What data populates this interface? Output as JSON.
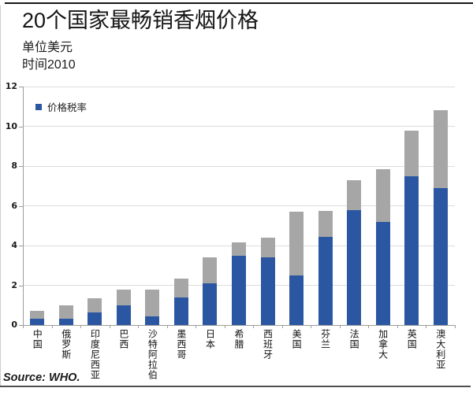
{
  "header": {
    "title": "20个国家最畅销香烟价格",
    "unit": "单位美元",
    "time": "时间2010"
  },
  "footer": {
    "source": "Source: WHO."
  },
  "colors": {
    "bar_blue": "#2b57a2",
    "bar_gray": "#a6a6a6",
    "gridline": "#dcdcdc",
    "axis": "#9c9c9c"
  },
  "chart_data": {
    "type": "bar",
    "stacked": true,
    "title": "20个国家最畅销香烟价格",
    "unit_note": "单位美元",
    "time_note": "时间2010",
    "categories": [
      "中国",
      "俄罗斯",
      "印度尼西亚",
      "巴西",
      "沙特阿拉伯",
      "墨西哥",
      "日本",
      "希腊",
      "西班牙",
      "美国",
      "芬兰",
      "法国",
      "加拿大",
      "英国",
      "澳大利亚"
    ],
    "series": [
      {
        "name": "价格税率",
        "color": "#2b57a2",
        "values": [
          0.3,
          0.33,
          0.65,
          1.0,
          0.45,
          1.4,
          2.1,
          3.5,
          3.4,
          2.5,
          4.45,
          5.8,
          5.2,
          7.5,
          6.9
        ]
      },
      {
        "name": "",
        "color": "#a6a6a6",
        "values": [
          0.4,
          0.67,
          0.7,
          0.8,
          1.35,
          0.95,
          1.3,
          0.65,
          1.0,
          3.2,
          1.3,
          1.5,
          2.65,
          2.3,
          3.9
        ]
      }
    ],
    "totals": [
      0.7,
      1.0,
      1.35,
      1.8,
      1.8,
      2.35,
      3.4,
      4.15,
      4.4,
      5.7,
      5.75,
      7.3,
      7.85,
      9.8,
      10.8
    ],
    "ylim": [
      0,
      12
    ],
    "yticks": [
      0,
      2,
      4,
      6,
      8,
      10,
      12
    ],
    "grid": "horizontal",
    "legend_position": "top-left",
    "legend": [
      {
        "label": "价格税率"
      }
    ]
  }
}
